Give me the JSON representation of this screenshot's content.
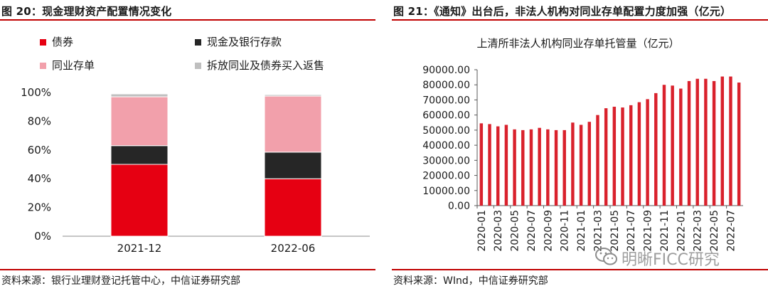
{
  "left_panel": {
    "title": "图 20：现金理财资产配置情况变化",
    "source": "资料来源：银行业理财登记托管中心，中信证券研究部"
  },
  "right_panel": {
    "title": "图 21：《通知》出台后，非法人机构对同业存单配置力度加强（亿元）",
    "source": "资料来源：WInd，中信证券研究部"
  },
  "watermark": {
    "text": "明晰FICC研究",
    "icon": "wechat-icon"
  },
  "colors": {
    "red": "#e60012",
    "black": "#262626",
    "pink": "#f2a0ab",
    "gray": "#bfbfbf",
    "bar_red": "#d9212c",
    "rule": "#c00000"
  },
  "chart_data": [
    {
      "type": "bar",
      "stacked": true,
      "categories": [
        "2021-12",
        "2022-06"
      ],
      "series": [
        {
          "name": "债券",
          "color": "#e60012",
          "values": [
            50,
            40
          ]
        },
        {
          "name": "现金及银行存款",
          "color": "#262626",
          "values": [
            13,
            18.5
          ]
        },
        {
          "name": "同业存单",
          "color": "#f2a0ab",
          "values": [
            34,
            39
          ]
        },
        {
          "name": "拆放同业及债券买入返售",
          "color": "#bfbfbf",
          "values": [
            2,
            1
          ]
        }
      ],
      "ylim": [
        0,
        100
      ],
      "yticks": [
        "0%",
        "20%",
        "40%",
        "60%",
        "80%",
        "100%"
      ],
      "legend_position": "top",
      "grid": false
    },
    {
      "type": "bar",
      "title": "上清所非法人机构同业存单托管量（亿元）",
      "x": [
        "2020-01",
        "2020-02",
        "2020-03",
        "2020-04",
        "2020-05",
        "2020-06",
        "2020-07",
        "2020-08",
        "2020-09",
        "2020-10",
        "2020-11",
        "2020-12",
        "2021-01",
        "2021-02",
        "2021-03",
        "2021-04",
        "2021-05",
        "2021-06",
        "2021-07",
        "2021-08",
        "2021-09",
        "2021-10",
        "2021-11",
        "2021-12",
        "2022-01",
        "2022-02",
        "2022-03",
        "2022-04",
        "2022-05",
        "2022-06",
        "2022-07",
        "2022-08"
      ],
      "xtick_labels": [
        "2020-01",
        "2020-03",
        "2020-05",
        "2020-07",
        "2020-09",
        "2020-11",
        "2021-01",
        "2021-03",
        "2021-05",
        "2021-07",
        "2021-09",
        "2021-11",
        "2022-01",
        "2022-03",
        "2022-05",
        "2022-07"
      ],
      "series": [
        {
          "color": "#d9212c",
          "values": [
            54500,
            54000,
            52500,
            53500,
            50500,
            50000,
            50500,
            51500,
            50500,
            50000,
            50000,
            55000,
            53500,
            55500,
            60000,
            64500,
            65500,
            65000,
            66500,
            68500,
            70500,
            74500,
            80000,
            79500,
            77500,
            82500,
            84000,
            84000,
            82500,
            85500,
            85500,
            81500
          ]
        }
      ],
      "ylim": [
        0,
        90000
      ],
      "yticks": [
        "0.00",
        "10000.00",
        "20000.00",
        "30000.00",
        "40000.00",
        "50000.00",
        "60000.00",
        "70000.00",
        "80000.00",
        "90000.00"
      ],
      "grid": false
    }
  ]
}
